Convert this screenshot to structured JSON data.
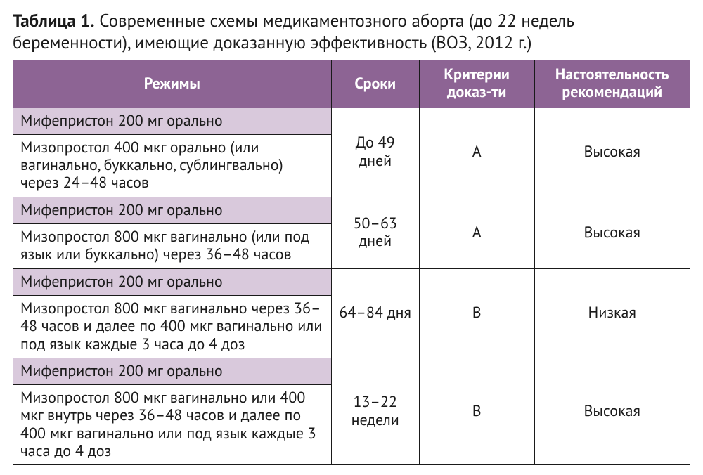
{
  "title_bold": "Таблица 1.",
  "title_rest": " Современные схемы медикаментозного аборта (до 22 недель беременности), имеющие доказанную эффективность (ВОЗ, 2012 г.)",
  "colors": {
    "header_bg": "#8d6494",
    "sub_bg": "#d9c9dc",
    "border": "#1a1a1a",
    "page_bg": "#ffffff"
  },
  "columns": [
    "Режимы",
    "Сроки",
    "Критерии доказ-ти",
    "Настоятельность рекомендаций"
  ],
  "groups": [
    {
      "sub": "Мифепристон 200 мг орально",
      "detail": "Мизопростол 400 мкг орально (или вагинально, буккально, сублингвально) через 24–48 часов",
      "term": "До 49 дней",
      "evidence": "A",
      "strength": "Высокая"
    },
    {
      "sub": "Мифепристон 200 мг орально",
      "detail": "Мизопростол 800 мкг вагинально (или под язык или буккально) через 36–48 часов",
      "term": "50–63 дней",
      "evidence": "A",
      "strength": "Высокая"
    },
    {
      "sub": "Мифепристон 200 мг орально",
      "detail": "Мизопростол 800 мкг вагинально через 36–48 часов и далее по 400 мкг вагинально или под язык каждые 3 часа до 4 доз",
      "term": "64–84 дня",
      "evidence": "B",
      "strength": "Низкая"
    },
    {
      "sub": "Мифепристон 200 мг орально",
      "detail": "Мизопростол 800 мкг вагинально или 400 мкг внутрь через 36–48 часов и далее по 400 мкг вагинально или под язык каждые 3 часа до 4 доз",
      "term": "13–22 недели",
      "evidence": "B",
      "strength": "Высокая"
    }
  ]
}
